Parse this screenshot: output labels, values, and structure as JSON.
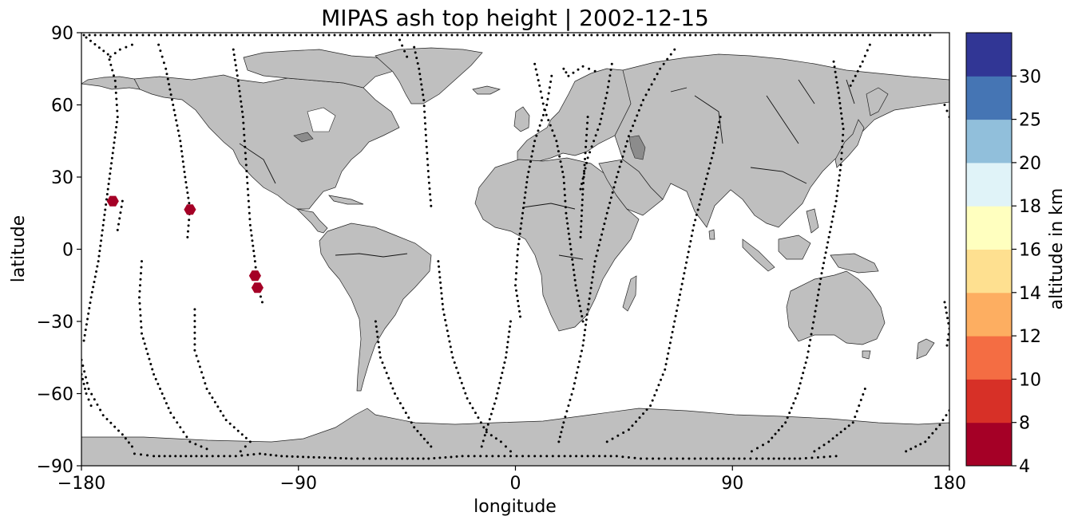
{
  "chart_data": {
    "type": "scatter",
    "title": "MIPAS ash top height | 2002-12-15",
    "xlabel": "longitude",
    "ylabel": "latitude",
    "xlim": [
      -180,
      180
    ],
    "ylim": [
      -90,
      90
    ],
    "xticks": [
      -180,
      -90,
      0,
      90,
      180
    ],
    "yticks": [
      -90,
      -60,
      -30,
      0,
      30,
      60,
      90
    ],
    "xtick_labels": [
      "−180",
      "−90",
      "0",
      "90",
      "180"
    ],
    "ytick_labels": [
      "−90",
      "−60",
      "−30",
      "0",
      "30",
      "60",
      "90"
    ],
    "basemap": "coastlines with gray land",
    "land_color": "#bfbfbf",
    "track_color": "#000000",
    "colorbar": {
      "label": "altitude in km",
      "boundaries": [
        4,
        8,
        10,
        12,
        14,
        16,
        18,
        20,
        25,
        30
      ],
      "tick_labels": [
        "4",
        "8",
        "10",
        "12",
        "14",
        "16",
        "18",
        "20",
        "25",
        "30"
      ],
      "colors": [
        "#a50026",
        "#d73027",
        "#f46d43",
        "#fdae61",
        "#fee090",
        "#ffffbf",
        "#e0f3f8",
        "#91bfdb",
        "#4575b4",
        "#313695"
      ]
    },
    "ash_detections": [
      {
        "lon": -167,
        "lat": 20,
        "altitude_km": 6
      },
      {
        "lon": -135,
        "lat": 16.5,
        "altitude_km": 6
      },
      {
        "lon": -108,
        "lat": -11,
        "altitude_km": 6
      },
      {
        "lon": -107,
        "lat": -16,
        "altitude_km": 6
      }
    ],
    "orbit_tracks": [
      {
        "points": [
          [
            -178,
            88
          ],
          [
            -169,
            81
          ],
          [
            -166,
            70
          ],
          [
            -165,
            55
          ],
          [
            -167,
            40
          ],
          [
            -169,
            25
          ],
          [
            -171,
            10
          ],
          [
            -173,
            -5
          ],
          [
            -176,
            -20
          ],
          [
            -179,
            -38
          ]
        ]
      },
      {
        "points": [
          [
            -180,
            -46
          ],
          [
            -177,
            -58
          ],
          [
            -171,
            -69
          ],
          [
            -163,
            -77
          ],
          [
            -159,
            -82
          ]
        ]
      },
      {
        "points": [
          [
            -168,
            80
          ],
          [
            -164,
            83
          ],
          [
            -159,
            85
          ]
        ]
      },
      {
        "points": [
          [
            -163,
            20
          ],
          [
            -165,
            8
          ]
        ]
      },
      {
        "points": [
          [
            -180,
            -52
          ],
          [
            -178,
            -60
          ],
          [
            -176,
            -65
          ]
        ]
      },
      {
        "points": [
          [
            -148,
            85
          ],
          [
            -145,
            75
          ],
          [
            -142,
            60
          ],
          [
            -139,
            45
          ],
          [
            -137,
            30
          ],
          [
            -135,
            17
          ],
          [
            -136,
            5
          ]
        ]
      },
      {
        "points": [
          [
            -155,
            -5
          ],
          [
            -156,
            -20
          ],
          [
            -155,
            -35
          ],
          [
            -150,
            -52
          ],
          [
            -143,
            -68
          ],
          [
            -135,
            -80
          ],
          [
            -128,
            -83
          ]
        ]
      },
      {
        "points": [
          [
            -117,
            83
          ],
          [
            -115,
            70
          ],
          [
            -113,
            55
          ],
          [
            -112,
            40
          ],
          [
            -111,
            25
          ],
          [
            -110,
            10
          ],
          [
            -108,
            -5
          ],
          [
            -107,
            -15
          ],
          [
            -105,
            -22
          ]
        ]
      },
      {
        "points": [
          [
            -133,
            -25
          ],
          [
            -133,
            -42
          ],
          [
            -128,
            -58
          ],
          [
            -120,
            -71
          ],
          [
            -110,
            -80
          ],
          [
            -114,
            -84
          ]
        ]
      },
      {
        "points": [
          [
            -48,
            87
          ],
          [
            -45,
            80
          ]
        ]
      },
      {
        "points": [
          [
            -42,
            84
          ],
          [
            -40,
            75
          ],
          [
            -38,
            62
          ],
          [
            -37,
            45
          ],
          [
            -36,
            30
          ],
          [
            -35,
            18
          ]
        ]
      },
      {
        "points": [
          [
            -58,
            -30
          ],
          [
            -56,
            -45
          ],
          [
            -50,
            -60
          ],
          [
            -42,
            -74
          ],
          [
            -35,
            -82
          ]
        ]
      },
      {
        "points": [
          [
            8,
            77
          ],
          [
            10,
            68
          ],
          [
            12,
            58
          ],
          [
            17,
            45
          ],
          [
            20,
            30
          ],
          [
            21,
            15
          ],
          [
            23,
            0
          ],
          [
            25,
            -15
          ],
          [
            28,
            -30
          ]
        ]
      },
      {
        "points": [
          [
            -32,
            -5
          ],
          [
            -30,
            -25
          ],
          [
            -26,
            -45
          ],
          [
            -20,
            -62
          ],
          [
            -12,
            -76
          ],
          [
            -6,
            -80
          ],
          [
            -2,
            -84
          ]
        ]
      },
      {
        "points": [
          [
            15,
            72
          ],
          [
            13,
            60
          ],
          [
            8,
            45
          ],
          [
            5,
            30
          ],
          [
            3,
            15
          ],
          [
            1,
            0
          ],
          [
            0,
            -15
          ],
          [
            2,
            -28
          ]
        ]
      },
      {
        "points": [
          [
            -2,
            -30
          ],
          [
            -4,
            -45
          ],
          [
            -8,
            -62
          ],
          [
            -12,
            -75
          ],
          [
            -14,
            -82
          ]
        ]
      },
      {
        "points": [
          [
            30,
            55
          ],
          [
            29,
            40
          ],
          [
            28,
            25
          ],
          [
            27,
            5
          ]
        ]
      },
      {
        "points": [
          [
            40,
            77
          ],
          [
            38,
            65
          ],
          [
            35,
            52
          ],
          [
            30,
            38
          ],
          [
            27,
            25
          ]
        ]
      },
      {
        "points": [
          [
            20,
            75
          ],
          [
            22,
            72
          ],
          [
            28,
            76
          ],
          [
            33,
            74
          ]
        ]
      },
      {
        "points": [
          [
            66,
            83
          ],
          [
            60,
            75
          ],
          [
            53,
            62
          ],
          [
            47,
            47
          ],
          [
            42,
            30
          ],
          [
            38,
            15
          ],
          [
            33,
            -5
          ],
          [
            30,
            -25
          ],
          [
            28,
            -40
          ],
          [
            24,
            -58
          ],
          [
            20,
            -72
          ],
          [
            18,
            -80
          ]
        ]
      },
      {
        "points": [
          [
            85,
            55
          ],
          [
            82,
            40
          ],
          [
            78,
            25
          ],
          [
            74,
            10
          ],
          [
            70,
            -10
          ],
          [
            66,
            -30
          ],
          [
            62,
            -50
          ],
          [
            56,
            -65
          ],
          [
            47,
            -75
          ],
          [
            38,
            -80
          ]
        ]
      },
      {
        "points": [
          [
            132,
            78
          ],
          [
            134,
            65
          ],
          [
            136,
            50
          ],
          [
            135,
            35
          ],
          [
            133,
            20
          ],
          [
            130,
            5
          ],
          [
            127,
            -10
          ],
          [
            124,
            -28
          ],
          [
            121,
            -45
          ],
          [
            117,
            -60
          ],
          [
            112,
            -72
          ],
          [
            105,
            -80
          ],
          [
            98,
            -84
          ]
        ]
      },
      {
        "points": [
          [
            147,
            85
          ],
          [
            144,
            78
          ],
          [
            139,
            68
          ]
        ]
      },
      {
        "points": [
          [
            145,
            -58
          ],
          [
            140,
            -72
          ],
          [
            130,
            -80
          ],
          [
            124,
            -84
          ]
        ]
      },
      {
        "points": [
          [
            178,
            -22
          ],
          [
            180,
            -33
          ],
          [
            179,
            -40
          ]
        ]
      },
      {
        "points": [
          [
            180,
            -67
          ],
          [
            176,
            -73
          ],
          [
            170,
            -80
          ],
          [
            162,
            -84
          ]
        ]
      },
      {
        "points": [
          [
            178,
            60
          ],
          [
            180,
            55
          ]
        ]
      },
      {
        "points": [
          [
            -179,
            89
          ],
          [
            -172,
            89
          ],
          [
            -157,
            89
          ],
          [
            -142,
            89
          ],
          [
            -127,
            89
          ],
          [
            -113,
            89
          ],
          [
            -89,
            89
          ],
          [
            -47,
            89
          ],
          [
            -8,
            89
          ],
          [
            12,
            89
          ],
          [
            34,
            89
          ],
          [
            77,
            89
          ],
          [
            158,
            89
          ],
          [
            172,
            89
          ]
        ]
      },
      {
        "points": [
          [
            -158,
            -85
          ],
          [
            -150,
            -86
          ],
          [
            -141,
            -86
          ],
          [
            -128,
            -86
          ],
          [
            -116,
            -86
          ],
          [
            -106,
            -85
          ],
          [
            -97,
            -86
          ],
          [
            -68,
            -87
          ],
          [
            -58,
            -87
          ],
          [
            -47,
            -87
          ],
          [
            -36,
            -87
          ],
          [
            -22,
            -86
          ],
          [
            -12,
            -86
          ],
          [
            -2,
            -86
          ],
          [
            8,
            -86
          ],
          [
            18,
            -86
          ],
          [
            30,
            -86
          ],
          [
            42,
            -86
          ],
          [
            52,
            -87
          ],
          [
            62,
            -87
          ],
          [
            72,
            -87
          ],
          [
            84,
            -87
          ],
          [
            95,
            -87
          ],
          [
            105,
            -87
          ],
          [
            118,
            -87
          ],
          [
            133,
            -86
          ]
        ]
      }
    ]
  }
}
